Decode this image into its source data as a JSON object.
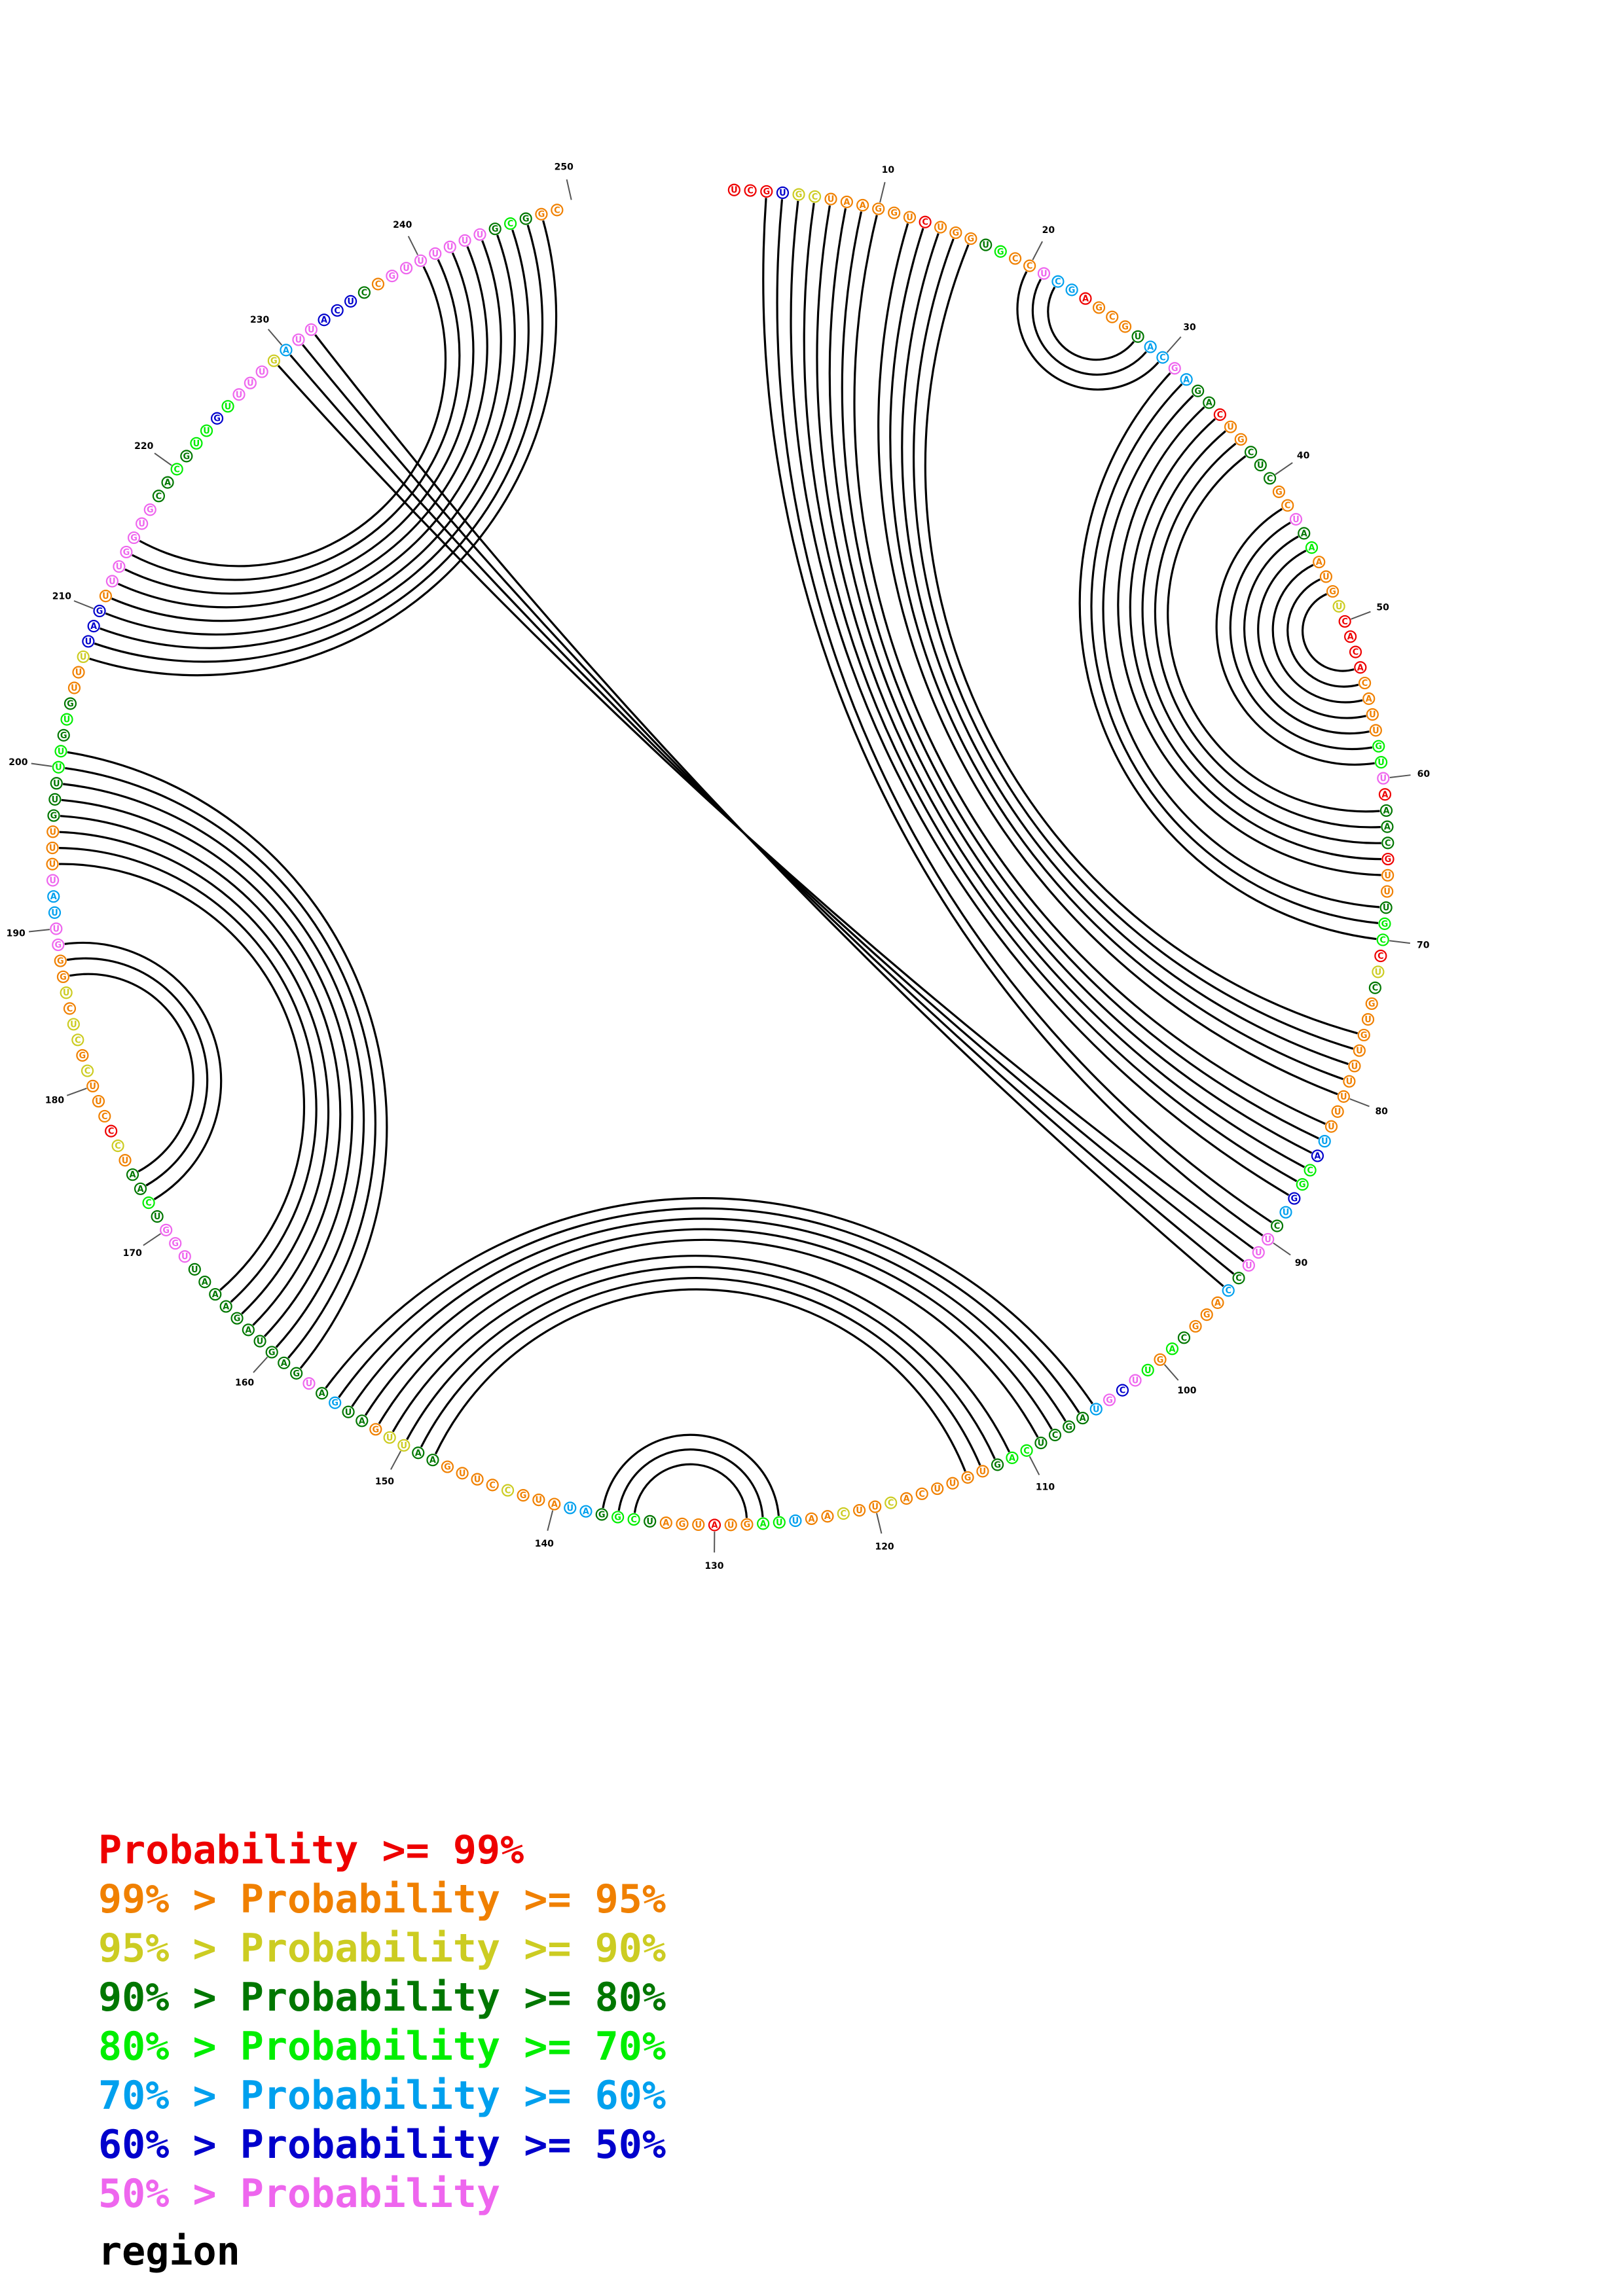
{
  "sequence_length": 255,
  "tick_labels": [
    "10",
    "20",
    "30",
    "40",
    "50",
    "60",
    "70",
    "80",
    "90",
    "100",
    "110",
    "120",
    "130",
    "140",
    "150",
    "160",
    "170",
    "180",
    "190",
    "200",
    "210",
    "220",
    "230",
    "240",
    "250"
  ],
  "category_colors": {
    "p99": "#ee0000",
    "p95": "#f08000",
    "p90": "#cccc22",
    "p80": "#007700",
    "p70": "#00ee00",
    "p60": "#00a0ee",
    "p50": "#0000cc",
    "plow": "#ee66ee"
  },
  "nucleotides": [
    [
      "U",
      "p99"
    ],
    [
      "C",
      "p99"
    ],
    [
      "G",
      "p99"
    ],
    [
      "U",
      "p50"
    ],
    [
      "G",
      "p90"
    ],
    [
      "C",
      "p90"
    ],
    [
      "U",
      "p95"
    ],
    [
      "A",
      "p95"
    ],
    [
      "A",
      "p95"
    ],
    [
      "G",
      "p95"
    ],
    [
      "G",
      "p95"
    ],
    [
      "U",
      "p95"
    ],
    [
      "C",
      "p99"
    ],
    [
      "U",
      "p95"
    ],
    [
      "G",
      "p95"
    ],
    [
      "G",
      "p95"
    ],
    [
      "U",
      "p80"
    ],
    [
      "G",
      "p70"
    ],
    [
      "C",
      "p95"
    ],
    [
      "C",
      "p95"
    ],
    [
      "U",
      "plow"
    ],
    [
      "C",
      "p60"
    ],
    [
      "G",
      "p60"
    ],
    [
      "A",
      "p99"
    ],
    [
      "G",
      "p95"
    ],
    [
      "C",
      "p95"
    ],
    [
      "G",
      "p95"
    ],
    [
      "U",
      "p80"
    ],
    [
      "A",
      "p60"
    ],
    [
      "C",
      "p60"
    ],
    [
      "G",
      "plow"
    ],
    [
      "A",
      "p60"
    ],
    [
      "G",
      "p80"
    ],
    [
      "A",
      "p80"
    ],
    [
      "C",
      "p99"
    ],
    [
      "U",
      "p95"
    ],
    [
      "G",
      "p95"
    ],
    [
      "C",
      "p80"
    ],
    [
      "U",
      "p80"
    ],
    [
      "C",
      "p80"
    ],
    [
      "G",
      "p95"
    ],
    [
      "C",
      "p95"
    ],
    [
      "U",
      "plow"
    ],
    [
      "A",
      "p80"
    ],
    [
      "A",
      "p70"
    ],
    [
      "A",
      "p95"
    ],
    [
      "U",
      "p95"
    ],
    [
      "G",
      "p95"
    ],
    [
      "U",
      "p90"
    ],
    [
      "C",
      "p99"
    ],
    [
      "A",
      "p99"
    ],
    [
      "C",
      "p99"
    ],
    [
      "A",
      "p99"
    ],
    [
      "C",
      "p95"
    ],
    [
      "A",
      "p95"
    ],
    [
      "U",
      "p95"
    ],
    [
      "U",
      "p95"
    ],
    [
      "G",
      "p70"
    ],
    [
      "U",
      "p70"
    ],
    [
      "U",
      "plow"
    ],
    [
      "A",
      "p99"
    ],
    [
      "A",
      "p80"
    ],
    [
      "A",
      "p80"
    ],
    [
      "C",
      "p80"
    ],
    [
      "G",
      "p99"
    ],
    [
      "U",
      "p95"
    ],
    [
      "U",
      "p95"
    ],
    [
      "U",
      "p80"
    ],
    [
      "G",
      "p70"
    ],
    [
      "C",
      "p70"
    ],
    [
      "C",
      "p99"
    ],
    [
      "U",
      "p90"
    ],
    [
      "C",
      "p80"
    ],
    [
      "G",
      "p95"
    ],
    [
      "U",
      "p95"
    ],
    [
      "G",
      "p95"
    ],
    [
      "U",
      "p95"
    ],
    [
      "U",
      "p95"
    ],
    [
      "U",
      "p95"
    ],
    [
      "U",
      "p95"
    ],
    [
      "U",
      "p95"
    ],
    [
      "U",
      "p95"
    ],
    [
      "U",
      "p60"
    ],
    [
      "A",
      "p50"
    ],
    [
      "C",
      "p70"
    ],
    [
      "G",
      "p70"
    ],
    [
      "G",
      "p50"
    ],
    [
      "U",
      "p60"
    ],
    [
      "C",
      "p80"
    ],
    [
      "U",
      "plow"
    ],
    [
      "U",
      "plow"
    ],
    [
      "U",
      "plow"
    ],
    [
      "C",
      "p80"
    ],
    [
      "C",
      "p60"
    ],
    [
      "A",
      "p95"
    ],
    [
      "G",
      "p95"
    ],
    [
      "G",
      "p95"
    ],
    [
      "C",
      "p80"
    ],
    [
      "A",
      "p70"
    ],
    [
      "G",
      "p95"
    ],
    [
      "U",
      "p70"
    ],
    [
      "U",
      "plow"
    ],
    [
      "C",
      "p50"
    ],
    [
      "G",
      "plow"
    ],
    [
      "U",
      "p60"
    ],
    [
      "A",
      "p80"
    ],
    [
      "G",
      "p80"
    ],
    [
      "C",
      "p80"
    ],
    [
      "U",
      "p80"
    ],
    [
      "C",
      "p70"
    ],
    [
      "A",
      "p70"
    ],
    [
      "G",
      "p80"
    ],
    [
      "U",
      "p95"
    ],
    [
      "G",
      "p95"
    ],
    [
      "U",
      "p95"
    ],
    [
      "U",
      "p95"
    ],
    [
      "C",
      "p95"
    ],
    [
      "A",
      "p95"
    ],
    [
      "C",
      "p90"
    ],
    [
      "U",
      "p95"
    ],
    [
      "U",
      "p95"
    ],
    [
      "C",
      "p90"
    ],
    [
      "A",
      "p95"
    ],
    [
      "A",
      "p95"
    ],
    [
      "U",
      "p60"
    ],
    [
      "U",
      "p70"
    ],
    [
      "A",
      "p70"
    ],
    [
      "G",
      "p95"
    ],
    [
      "U",
      "p95"
    ],
    [
      "A",
      "p99"
    ],
    [
      "U",
      "p95"
    ],
    [
      "G",
      "p95"
    ],
    [
      "A",
      "p95"
    ],
    [
      "U",
      "p80"
    ],
    [
      "C",
      "p70"
    ],
    [
      "G",
      "p70"
    ],
    [
      "G",
      "p80"
    ],
    [
      "A",
      "p60"
    ],
    [
      "U",
      "p60"
    ],
    [
      "A",
      "p95"
    ],
    [
      "U",
      "p95"
    ],
    [
      "G",
      "p95"
    ],
    [
      "C",
      "p90"
    ],
    [
      "C",
      "p95"
    ],
    [
      "U",
      "p95"
    ],
    [
      "U",
      "p95"
    ],
    [
      "G",
      "p95"
    ],
    [
      "A",
      "p80"
    ],
    [
      "A",
      "p80"
    ],
    [
      "U",
      "p90"
    ],
    [
      "U",
      "p90"
    ],
    [
      "G",
      "p95"
    ],
    [
      "A",
      "p80"
    ],
    [
      "U",
      "p80"
    ],
    [
      "G",
      "p60"
    ],
    [
      "A",
      "p80"
    ],
    [
      "U",
      "plow"
    ],
    [
      "G",
      "p80"
    ],
    [
      "A",
      "p80"
    ],
    [
      "G",
      "p80"
    ],
    [
      "U",
      "p80"
    ],
    [
      "A",
      "p80"
    ],
    [
      "G",
      "p80"
    ],
    [
      "A",
      "p80"
    ],
    [
      "A",
      "p80"
    ],
    [
      "A",
      "p80"
    ],
    [
      "U",
      "p80"
    ],
    [
      "U",
      "plow"
    ],
    [
      "G",
      "plow"
    ],
    [
      "G",
      "plow"
    ],
    [
      "U",
      "p80"
    ],
    [
      "C",
      "p70"
    ],
    [
      "A",
      "p80"
    ],
    [
      "A",
      "p80"
    ],
    [
      "U",
      "p95"
    ],
    [
      "C",
      "p90"
    ],
    [
      "C",
      "p99"
    ],
    [
      "C",
      "p95"
    ],
    [
      "U",
      "p95"
    ],
    [
      "U",
      "p95"
    ],
    [
      "C",
      "p90"
    ],
    [
      "G",
      "p95"
    ],
    [
      "C",
      "p90"
    ],
    [
      "U",
      "p90"
    ],
    [
      "C",
      "p95"
    ],
    [
      "U",
      "p90"
    ],
    [
      "G",
      "p95"
    ],
    [
      "G",
      "p95"
    ],
    [
      "G",
      "plow"
    ],
    [
      "U",
      "plow"
    ],
    [
      "U",
      "p60"
    ],
    [
      "A",
      "p60"
    ],
    [
      "U",
      "plow"
    ],
    [
      "U",
      "p95"
    ],
    [
      "U",
      "p95"
    ],
    [
      "U",
      "p95"
    ],
    [
      "G",
      "p80"
    ],
    [
      "U",
      "p80"
    ],
    [
      "U",
      "p80"
    ],
    [
      "U",
      "p70"
    ],
    [
      "U",
      "p70"
    ],
    [
      "G",
      "p80"
    ],
    [
      "U",
      "p70"
    ],
    [
      "G",
      "p80"
    ],
    [
      "U",
      "p95"
    ],
    [
      "U",
      "p95"
    ],
    [
      "U",
      "p90"
    ],
    [
      "U",
      "p50"
    ],
    [
      "A",
      "p50"
    ],
    [
      "G",
      "p50"
    ],
    [
      "U",
      "p95"
    ],
    [
      "U",
      "plow"
    ],
    [
      "U",
      "plow"
    ],
    [
      "G",
      "plow"
    ],
    [
      "G",
      "plow"
    ],
    [
      "U",
      "plow"
    ],
    [
      "G",
      "plow"
    ],
    [
      "C",
      "p80"
    ],
    [
      "A",
      "p80"
    ],
    [
      "C",
      "p70"
    ],
    [
      "G",
      "p80"
    ],
    [
      "U",
      "p70"
    ],
    [
      "U",
      "p70"
    ],
    [
      "G",
      "p50"
    ],
    [
      "U",
      "p70"
    ],
    [
      "U",
      "plow"
    ],
    [
      "U",
      "plow"
    ],
    [
      "U",
      "plow"
    ],
    [
      "G",
      "p90"
    ],
    [
      "A",
      "p60"
    ],
    [
      "U",
      "plow"
    ],
    [
      "U",
      "plow"
    ],
    [
      "A",
      "p50"
    ],
    [
      "C",
      "p50"
    ],
    [
      "U",
      "p50"
    ],
    [
      "C",
      "p80"
    ],
    [
      "C",
      "p95"
    ],
    [
      "G",
      "plow"
    ],
    [
      "U",
      "plow"
    ],
    [
      "U",
      "plow"
    ],
    [
      "U",
      "plow"
    ],
    [
      "U",
      "plow"
    ],
    [
      "U",
      "plow"
    ],
    [
      "U",
      "plow"
    ],
    [
      "G",
      "p80"
    ],
    [
      "C",
      "p70"
    ],
    [
      "G",
      "p80"
    ],
    [
      "G",
      "p95"
    ],
    [
      "C",
      "p95"
    ]
  ],
  "base_pairs": [
    [
      3,
      90
    ],
    [
      4,
      89
    ],
    [
      5,
      87
    ],
    [
      6,
      86
    ],
    [
      7,
      85
    ],
    [
      8,
      84
    ],
    [
      9,
      83
    ],
    [
      10,
      82
    ],
    [
      12,
      80
    ],
    [
      13,
      79
    ],
    [
      14,
      78
    ],
    [
      15,
      77
    ],
    [
      16,
      76
    ],
    [
      20,
      30
    ],
    [
      21,
      29
    ],
    [
      22,
      28
    ],
    [
      31,
      70
    ],
    [
      32,
      69
    ],
    [
      33,
      68
    ],
    [
      34,
      66
    ],
    [
      35,
      65
    ],
    [
      36,
      64
    ],
    [
      37,
      63
    ],
    [
      38,
      62
    ],
    [
      42,
      59
    ],
    [
      43,
      58
    ],
    [
      44,
      57
    ],
    [
      45,
      56
    ],
    [
      46,
      55
    ],
    [
      47,
      54
    ],
    [
      48,
      53
    ],
    [
      91,
      229
    ],
    [
      92,
      230
    ],
    [
      93,
      231
    ],
    [
      94,
      232
    ],
    [
      105,
      156
    ],
    [
      106,
      155
    ],
    [
      107,
      154
    ],
    [
      108,
      153
    ],
    [
      109,
      152
    ],
    [
      111,
      151
    ],
    [
      112,
      150
    ],
    [
      113,
      149
    ],
    [
      114,
      148
    ],
    [
      126,
      137
    ],
    [
      127,
      136
    ],
    [
      128,
      135
    ],
    [
      158,
      201
    ],
    [
      159,
      200
    ],
    [
      160,
      199
    ],
    [
      161,
      198
    ],
    [
      162,
      197
    ],
    [
      163,
      196
    ],
    [
      164,
      195
    ],
    [
      165,
      194
    ],
    [
      172,
      189
    ],
    [
      173,
      188
    ],
    [
      174,
      187
    ],
    [
      207,
      248
    ],
    [
      208,
      247
    ],
    [
      209,
      246
    ],
    [
      210,
      245
    ],
    [
      211,
      244
    ],
    [
      212,
      243
    ],
    [
      213,
      242
    ],
    [
      214,
      241
    ],
    [
      215,
      240
    ]
  ],
  "legend": [
    {
      "prefix": "",
      "label": "Probability >= 99%",
      "color": "#ee0000"
    },
    {
      "prefix": "99% > ",
      "label": "Probability >= 95%",
      "color": "#f08000"
    },
    {
      "prefix": "95% > ",
      "label": "Probability >= 90%",
      "color": "#cccc22"
    },
    {
      "prefix": "90% > ",
      "label": "Probability >= 80%",
      "color": "#007700"
    },
    {
      "prefix": "80% > ",
      "label": "Probability >= 70%",
      "color": "#00ee00"
    },
    {
      "prefix": "70% > ",
      "label": "Probability >= 60%",
      "color": "#00a0ee"
    },
    {
      "prefix": "60% > ",
      "label": "Probability >= 50%",
      "color": "#0000cc"
    },
    {
      "prefix": "50% > ",
      "label": "Probability",
      "color": "#ee66ee"
    }
  ],
  "region_label": "region"
}
